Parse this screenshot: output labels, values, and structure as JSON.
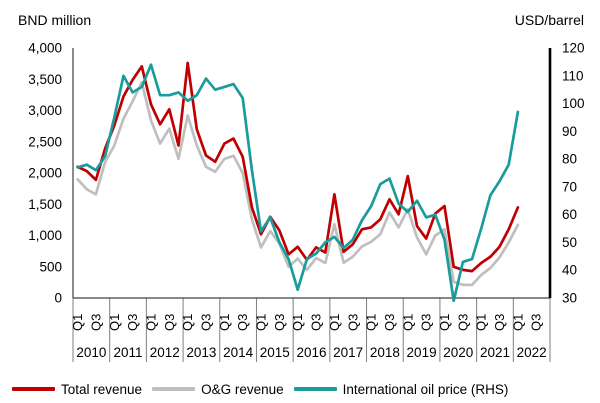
{
  "chart_data": {
    "type": "line",
    "left_axis": {
      "title": "BND million",
      "min": 0,
      "max": 4000,
      "tick_step": 500,
      "tick_labels": [
        "0",
        "500",
        "1,000",
        "1,500",
        "2,000",
        "2,500",
        "3,000",
        "3,500",
        "4,000"
      ]
    },
    "right_axis": {
      "title": "USD/barrel",
      "min": 30,
      "max": 120,
      "tick_step": 10,
      "tick_labels": [
        "30",
        "40",
        "50",
        "60",
        "70",
        "80",
        "90",
        "100",
        "110",
        "120"
      ]
    },
    "x_axis": {
      "years": [
        "2010",
        "2011",
        "2012",
        "2013",
        "2014",
        "2015",
        "2016",
        "2017",
        "2018",
        "2019",
        "2020",
        "2021",
        "2022"
      ],
      "quarter_labels": [
        "Q1",
        "Q3"
      ],
      "quarters_per_year": 4
    },
    "grid": "off",
    "legend_position": "bottom",
    "series": [
      {
        "name": "Total revenue",
        "axis": "left",
        "color": "#C00000",
        "values": [
          2100,
          2030,
          1890,
          2390,
          2760,
          3225,
          3490,
          3705,
          3100,
          2780,
          3020,
          2440,
          3760,
          2700,
          2280,
          2180,
          2470,
          2550,
          2260,
          1450,
          1020,
          1300,
          1080,
          700,
          820,
          610,
          810,
          730,
          1660,
          740,
          860,
          1100,
          1130,
          1260,
          1580,
          1340,
          1950,
          1150,
          950,
          1350,
          1470,
          500,
          450,
          430,
          560,
          660,
          820,
          1100,
          1450
        ]
      },
      {
        "name": "O&G revenue",
        "axis": "left",
        "color": "#BFBFBF",
        "values": [
          1900,
          1740,
          1660,
          2175,
          2440,
          2870,
          3145,
          3450,
          2840,
          2470,
          2710,
          2225,
          2920,
          2440,
          2100,
          2020,
          2225,
          2275,
          2000,
          1260,
          810,
          1070,
          870,
          500,
          630,
          450,
          640,
          560,
          1180,
          565,
          660,
          825,
          900,
          1020,
          1370,
          1130,
          1420,
          970,
          700,
          1000,
          1100,
          260,
          210,
          210,
          370,
          480,
          650,
          890,
          1170
        ]
      },
      {
        "name": "International oil price (RHS)",
        "axis": "right",
        "color": "#1A9C9C",
        "values": [
          77,
          78,
          76,
          81,
          95,
          110,
          104,
          106,
          114,
          103,
          103,
          104,
          101,
          103,
          109,
          105,
          106,
          107,
          102,
          76,
          54,
          59,
          50,
          44,
          33,
          44,
          46,
          50,
          52,
          48,
          51,
          58,
          63,
          71,
          73,
          64,
          61,
          65,
          59,
          60,
          51,
          29,
          43,
          44,
          55,
          67,
          72,
          78,
          97
        ]
      }
    ]
  }
}
